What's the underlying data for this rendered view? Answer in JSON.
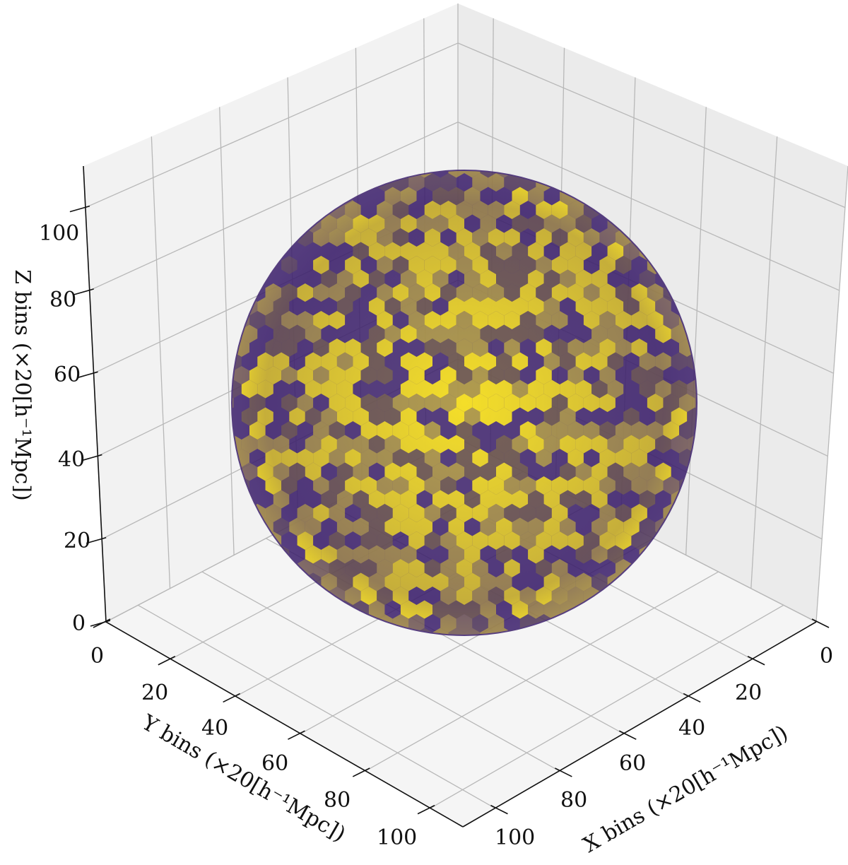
{
  "chart_data": {
    "type": "scatter3d-voxels",
    "title": "",
    "xlabel": "X bins (×20[h⁻¹Mpc])",
    "ylabel": "Y bins (×20[h⁻¹Mpc])",
    "zlabel": "Z bins (×20[h⁻¹Mpc])",
    "xticks": [
      "0",
      "20",
      "40",
      "60",
      "80",
      "100"
    ],
    "yticks": [
      "0",
      "20",
      "40",
      "60",
      "80",
      "100"
    ],
    "zticks": [
      "0",
      "20",
      "40",
      "60",
      "80",
      "100"
    ],
    "xlim": [
      0,
      110
    ],
    "ylim": [
      0,
      110
    ],
    "zlim": [
      0,
      110
    ],
    "grid": true,
    "colormap": "viridis-like (dark purple to yellow)",
    "colors": {
      "low": "#3b1f6b",
      "mid": "#8a7a3a",
      "high": "#fde725"
    },
    "shape": "sphere of voxels",
    "sphere_center_bins": [
      55,
      55,
      55
    ],
    "sphere_radius_bins": 50
  }
}
